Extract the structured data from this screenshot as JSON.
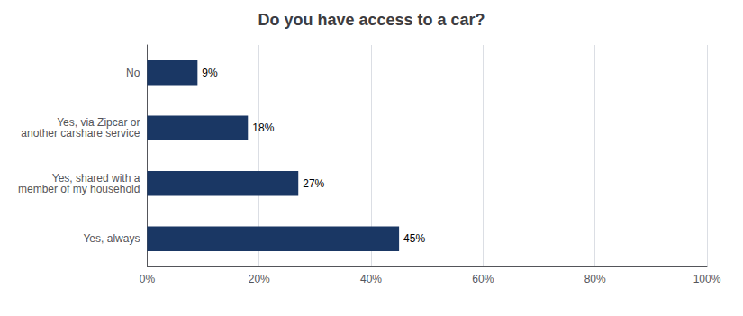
{
  "chart_data": {
    "type": "bar",
    "orientation": "horizontal",
    "title": "Do you have access to a car?",
    "categories": [
      "Yes, always",
      "Yes, shared with a\nmember of my household",
      "Yes, via Zipcar or\nanother carshare service",
      "No"
    ],
    "values": [
      45,
      27,
      18,
      9
    ],
    "value_labels": [
      "45%",
      "27%",
      "18%",
      "9%"
    ],
    "data_labels": true,
    "color": "#1a3764",
    "xlim": [
      0,
      100
    ],
    "xticks": [
      {
        "value": 0,
        "label": "0%"
      },
      {
        "value": 20,
        "label": "20%"
      },
      {
        "value": 40,
        "label": "40%"
      },
      {
        "value": 60,
        "label": "60%"
      },
      {
        "value": 80,
        "label": "80%"
      },
      {
        "value": 100,
        "label": "100%"
      }
    ],
    "grid": true
  }
}
